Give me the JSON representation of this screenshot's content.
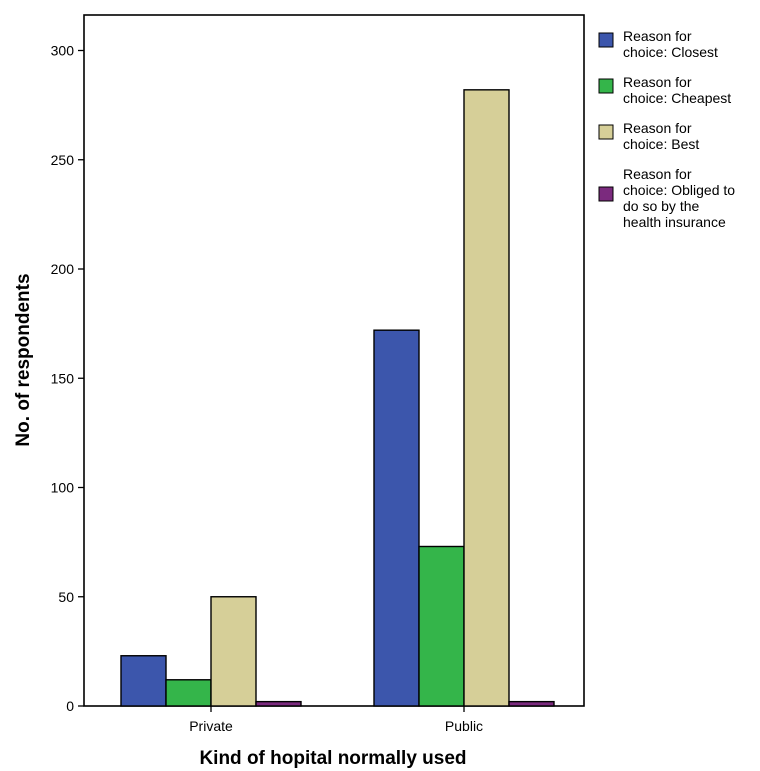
{
  "chart_data": {
    "type": "bar",
    "title": "",
    "xlabel": "Kind of hopital normally used",
    "ylabel": "No. of respondents",
    "categories": [
      "Private",
      "Public"
    ],
    "ylim": [
      0,
      320
    ],
    "yticks": [
      0,
      50,
      100,
      150,
      200,
      250,
      300
    ],
    "grid": false,
    "legend_position": "right",
    "series": [
      {
        "name": "Reason for choice: Closest",
        "legend_lines": [
          "Reason for",
          "choice: Closest"
        ],
        "color": "#3c56ac",
        "values": [
          23,
          172
        ]
      },
      {
        "name": "Reason for choice: Cheapest",
        "legend_lines": [
          "Reason for",
          "choice: Cheapest"
        ],
        "color": "#34b54a",
        "values": [
          12,
          73
        ]
      },
      {
        "name": "Reason for choice: Best",
        "legend_lines": [
          "Reason for",
          "choice: Best"
        ],
        "color": "#d6cf98",
        "values": [
          50,
          282
        ]
      },
      {
        "name": "Reason for choice: Obliged to do so by the health insurance",
        "legend_lines": [
          "Reason for",
          "choice: Obliged to",
          "do so by the",
          "health insurance"
        ],
        "color": "#7b2a7e",
        "values": [
          2,
          2
        ]
      }
    ]
  }
}
